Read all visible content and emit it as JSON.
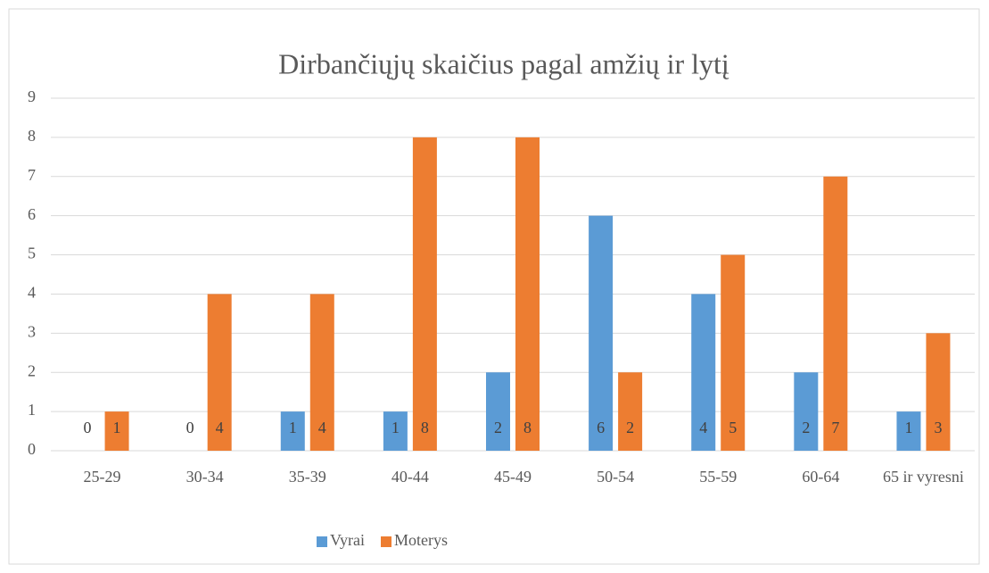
{
  "chart_data": {
    "type": "bar",
    "title": "Dirbančiųjų skaičius pagal amžių ir lytį",
    "categories": [
      "25-29",
      "30-34",
      "35-39",
      "40-44",
      "45-49",
      "50-54",
      "55-59",
      "60-64",
      "65 ir vyresni"
    ],
    "series": [
      {
        "name": "Vyrai",
        "color": "#5b9bd5",
        "values": [
          0,
          0,
          1,
          1,
          2,
          6,
          4,
          2,
          1
        ]
      },
      {
        "name": "Moterys",
        "color": "#ed7d31",
        "values": [
          1,
          4,
          4,
          8,
          8,
          2,
          5,
          7,
          3
        ]
      }
    ],
    "ylim": [
      0,
      9
    ],
    "yticks": [
      0,
      1,
      2,
      3,
      4,
      5,
      6,
      7,
      8,
      9
    ],
    "grid": true,
    "legend": "bottom"
  }
}
